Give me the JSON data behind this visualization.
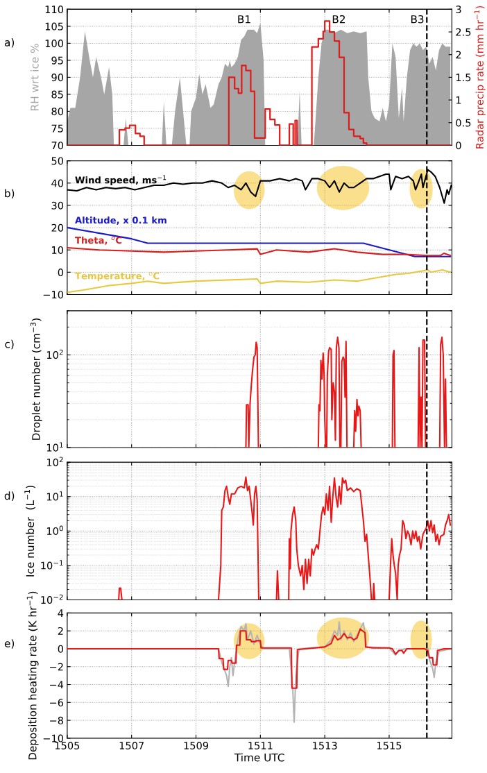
{
  "chart_data": [
    {
      "type": "area",
      "ylabel": "RH wrt ice %",
      "y2label": "Radar precip rate (mm hr$^{−1}$)",
      "xlim": [
        1505,
        1516.95
      ],
      "xticks": [
        1505,
        1507,
        1509,
        1511,
        1513,
        1515
      ],
      "ylim": [
        70,
        110
      ],
      "yticks": [
        70,
        75,
        80,
        85,
        90,
        95,
        100,
        105,
        110
      ],
      "y2lim": [
        0,
        3
      ],
      "y2ticks": [
        0,
        0.5,
        1,
        1.5,
        2,
        2.5,
        3
      ],
      "grid": true,
      "tick_labels": "y",
      "annotations": [
        "a)",
        "B1",
        "B2",
        "B3"
      ],
      "ref_lines": [
        {
          "axis": "x",
          "value": 1516.17,
          "color": "#000000",
          "line_style": "dashed"
        }
      ],
      "series": [
        {
          "type": "area",
          "color": "#a6a6a6",
          "x": [
            1505,
            1505.1,
            1505.25,
            1505.4,
            1505.55,
            1505.7,
            1505.8,
            1505.9,
            1506.05,
            1506.15,
            1506.3,
            1506.4,
            1506.45,
            1506.75,
            1506.82,
            1506.9,
            1507.94,
            1508.0,
            1508.08,
            1508.25,
            1508.35,
            1508.5,
            1508.6,
            1508.7,
            1508.8,
            1508.85,
            1509.0,
            1509.1,
            1509.2,
            1509.3,
            1509.45,
            1509.55,
            1509.7,
            1509.8,
            1509.9,
            1510.0,
            1510.05,
            1510.1,
            1510.2,
            1510.3,
            1510.4,
            1510.5,
            1510.6,
            1510.8,
            1510.9,
            1511.0,
            1511.1,
            1511.15,
            1512.15,
            1512.22,
            1512.28,
            1512.66,
            1512.8,
            1512.9,
            1513.0,
            1513.1,
            1513.3,
            1513.5,
            1513.7,
            1513.9,
            1514.1,
            1514.3,
            1514.35,
            1514.45,
            1514.55,
            1514.7,
            1514.8,
            1514.9,
            1515.0,
            1515.1,
            1515.2,
            1515.3,
            1515.4,
            1515.45,
            1515.55,
            1515.65,
            1515.75,
            1515.85,
            1515.95,
            1516.05,
            1516.15,
            1516.25,
            1516.35,
            1516.45,
            1516.55,
            1516.65,
            1516.75,
            1516.9
          ],
          "values": [
            77,
            81,
            81,
            90,
            103.5,
            95,
            90,
            96,
            90,
            85,
            93,
            85,
            70,
            70,
            78,
            70,
            70,
            83,
            70,
            70,
            80,
            90,
            80,
            70,
            70,
            80,
            84,
            91,
            85,
            88,
            81,
            82,
            88,
            90,
            94,
            93,
            95,
            93,
            94,
            96,
            101,
            102,
            104,
            104,
            103,
            106,
            95,
            70,
            70,
            86,
            70,
            70,
            90,
            100,
            104,
            104,
            103,
            104,
            103,
            103.5,
            103,
            103.5,
            90,
            80,
            78,
            77,
            81,
            77,
            82,
            100,
            96,
            78,
            87,
            77,
            90,
            98,
            100,
            99,
            100,
            98,
            99,
            94,
            96,
            92,
            98,
            100,
            99,
            99
          ]
        },
        {
          "type": "step",
          "axis": "y2",
          "color": "#dd1c1c",
          "x": [
            1505,
            1506.62,
            1506.8,
            1506.94,
            1507.12,
            1507.26,
            1507.39,
            1510.02,
            1510.2,
            1510.32,
            1510.42,
            1510.55,
            1510.7,
            1510.82,
            1511.15,
            1511.3,
            1511.45,
            1511.6,
            1511.9,
            1512.02,
            1512.08,
            1512.14,
            1512.2,
            1512.6,
            1512.8,
            1512.95,
            1513.0,
            1513.15,
            1513.3,
            1513.45,
            1513.6,
            1513.75,
            1513.9,
            1514.1,
            1514.2,
            1514.3,
            1516.9
          ],
          "values": [
            0,
            0.34,
            0.38,
            0.44,
            0.26,
            0.2,
            0,
            1.5,
            1.25,
            1.15,
            1.76,
            1.65,
            1.19,
            0.16,
            0.8,
            0.57,
            0.45,
            0,
            0.47,
            0,
            0.55,
            0,
            0,
            2.17,
            2.35,
            2.51,
            2.74,
            2.5,
            2.3,
            1.94,
            0.72,
            0.35,
            0.2,
            0.15,
            0.05,
            0,
            0
          ]
        }
      ]
    },
    {
      "type": "line",
      "xlim": [
        1505,
        1516.95
      ],
      "xticks": [
        1505,
        1507,
        1509,
        1511,
        1513,
        1515
      ],
      "ylim": [
        -10,
        50
      ],
      "yticks": [
        {
          "value": -10,
          "label": "−10"
        },
        0,
        10,
        20,
        30,
        40,
        50
      ],
      "grid": true,
      "tick_labels": "y",
      "annotations": [
        "b)"
      ],
      "ref_lines": [
        {
          "axis": "x",
          "value": 1516.17,
          "color": "#000000",
          "line_style": "dashed"
        }
      ],
      "series": [
        {
          "name": "Wind speed, ms$^{−1}$",
          "color": "#000000",
          "x": [
            1505,
            1505.3,
            1505.6,
            1505.9,
            1506.2,
            1506.5,
            1506.8,
            1507.1,
            1507.4,
            1507.7,
            1508,
            1508.3,
            1508.6,
            1508.9,
            1509.2,
            1509.5,
            1509.8,
            1510.0,
            1510.2,
            1510.4,
            1510.55,
            1510.7,
            1510.85,
            1511.0,
            1511.3,
            1511.6,
            1511.9,
            1512.1,
            1512.3,
            1512.4,
            1512.6,
            1512.8,
            1513.0,
            1513.15,
            1513.3,
            1513.45,
            1513.6,
            1513.75,
            1513.9,
            1514.1,
            1514.3,
            1514.5,
            1514.7,
            1514.9,
            1515.0,
            1515.05,
            1515.2,
            1515.4,
            1515.6,
            1515.75,
            1515.82,
            1515.9,
            1516.0,
            1516.05,
            1516.2,
            1516.3,
            1516.43,
            1516.57,
            1516.71,
            1516.8,
            1516.85,
            1516.93
          ],
          "values": [
            37,
            36.5,
            38,
            37,
            38,
            37.5,
            38,
            37,
            38,
            39,
            39,
            40,
            39.5,
            40,
            40,
            41,
            40,
            38,
            39,
            37,
            40,
            36,
            34,
            41,
            41,
            42,
            41,
            42,
            41,
            37,
            42,
            42,
            41,
            38,
            41,
            36,
            40,
            38,
            38,
            40,
            42,
            42,
            43,
            44,
            44,
            37,
            43,
            42,
            43,
            41,
            37,
            40,
            44,
            38,
            46,
            45,
            43,
            38,
            31,
            37,
            35,
            39
          ]
        },
        {
          "name": "Altitude, x 0.1 km",
          "color": "#1a1acc",
          "x": [
            1505,
            1507,
            1507.5,
            1514.2,
            1515.8,
            1516.9
          ],
          "values": [
            20,
            15,
            13,
            13,
            7,
            7
          ]
        },
        {
          "name": "Theta, $^{o}$C",
          "color": "#d62020",
          "x": [
            1505,
            1506,
            1507,
            1508,
            1509,
            1510,
            1510.9,
            1511.0,
            1511.5,
            1512.5,
            1513.3,
            1514,
            1514.8,
            1515.5,
            1516.2,
            1516.6,
            1516.7,
            1516.9
          ],
          "values": [
            11,
            10,
            9.5,
            9,
            9.5,
            10,
            10.5,
            8,
            10,
            9,
            10.5,
            9,
            8,
            8,
            7.5,
            7.5,
            8.5,
            7.5
          ]
        },
        {
          "name": "Temperature, $^{o}$C",
          "color": "#e8c840",
          "x": [
            1505,
            1505.5,
            1506.3,
            1507,
            1507.5,
            1508,
            1509,
            1510.9,
            1511.0,
            1511.5,
            1512.5,
            1513.3,
            1514,
            1514.8,
            1515.2,
            1515.6,
            1516.2,
            1516.3,
            1516.65,
            1516.9
          ],
          "values": [
            -9,
            -8,
            -6,
            -5,
            -4,
            -5,
            -4,
            -3,
            -5,
            -4,
            -4.5,
            -3.5,
            -4,
            -2,
            -1,
            -0.5,
            1,
            0,
            1,
            0
          ]
        }
      ]
    },
    {
      "type": "line",
      "log": true,
      "ylabel": "Droplet number (cm$^{−3}$)",
      "xlim": [
        1505,
        1516.95
      ],
      "xticks": [
        1505,
        1507,
        1509,
        1511,
        1513,
        1515
      ],
      "ylim": [
        10,
        300
      ],
      "yticks": [
        {
          "value": 10,
          "label": "10$^{1}$"
        },
        {
          "value": 100,
          "label": "10$^{2}$"
        }
      ],
      "grid": true,
      "tick_labels": "y",
      "annotations": [
        "c)"
      ],
      "ref_lines": [
        {
          "axis": "x",
          "value": 1516.17,
          "color": "#000000",
          "line_style": "dashed"
        }
      ],
      "series": [
        {
          "color": "#e81818",
          "x": [
            1510.55,
            1510.57,
            1510.62,
            1510.64,
            1510.68,
            1510.72,
            1510.76,
            1510.8,
            1510.84,
            1510.87,
            1510.9,
            1510.94,
            1511.0,
            1512.8,
            1512.82,
            1512.85,
            1512.88,
            1512.91,
            1512.95,
            1512.98,
            1513.0,
            1513.03,
            1513.06,
            1513.08,
            1513.12,
            1513.15,
            1513.2,
            1513.22,
            1513.26,
            1513.3,
            1513.33,
            1513.36,
            1513.4,
            1513.44,
            1513.47,
            1513.5,
            1513.53,
            1513.57,
            1513.6,
            1513.63,
            1513.66,
            1513.69,
            1513.8,
            1513.9,
            1513.93,
            1513.96,
            1514.0,
            1514.03,
            1514.06,
            1514.1,
            1514.13,
            1514.6,
            1515.1,
            1515.12,
            1515.15,
            1515.18,
            1515.5,
            1515.9,
            1515.93,
            1515.96,
            1515.99,
            1516.02,
            1516.05,
            1516.1,
            1516.13,
            1516.4,
            1516.57,
            1516.6,
            1516.64,
            1516.68,
            1516.72,
            1516.75,
            1516.78
          ],
          "values": [
            10,
            29,
            29,
            10,
            30,
            48,
            70,
            95,
            100,
            137,
            120,
            10,
            null,
            10,
            29,
            25,
            87,
            55,
            105,
            60,
            20,
            10,
            10,
            60,
            110,
            120,
            115,
            20,
            50,
            40,
            12,
            120,
            155,
            120,
            10,
            10,
            85,
            95,
            90,
            35,
            140,
            10,
            null,
            10,
            25,
            15,
            33,
            22,
            28,
            25,
            10,
            null,
            10,
            100,
            112,
            10,
            null,
            10,
            120,
            10,
            35,
            10,
            145,
            145,
            10,
            null,
            10,
            130,
            155,
            100,
            10,
            55,
            10
          ]
        }
      ]
    },
    {
      "type": "line",
      "log": true,
      "ylabel": "Ice number  (L$^{−1}$)",
      "xlim": [
        1505,
        1516.95
      ],
      "xticks": [
        1505,
        1507,
        1509,
        1511,
        1513,
        1515
      ],
      "ylim": [
        0.01,
        100
      ],
      "yticks": [
        {
          "value": 0.01,
          "label": "10$^{−2}$"
        },
        {
          "value": 0.1,
          "label": "10$^{−1}$"
        },
        {
          "value": 1,
          "label": "10$^{0}$"
        },
        {
          "value": 10,
          "label": "10$^{1}$"
        },
        {
          "value": 100,
          "label": "10$^{2}$"
        }
      ],
      "grid": true,
      "tick_labels": "y",
      "annotations": [
        "d)"
      ],
      "ref_lines": [
        {
          "axis": "x",
          "value": 1516.17,
          "color": "#000000",
          "line_style": "dashed"
        }
      ],
      "series": [
        {
          "color": "#e81818",
          "x": [
            1506.6,
            1506.62,
            1506.66,
            1506.7,
            1506.75,
            1509.7,
            1509.77,
            1509.8,
            1509.85,
            1509.9,
            1509.95,
            1510.0,
            1510.05,
            1510.1,
            1510.2,
            1510.3,
            1510.4,
            1510.5,
            1510.55,
            1510.6,
            1510.65,
            1510.7,
            1510.75,
            1510.78,
            1510.82,
            1510.86,
            1510.9,
            1510.95,
            1511.0,
            1511.5,
            1511.53,
            1511.57,
            1511.7,
            1511.88,
            1511.9,
            1511.93,
            1511.95,
            1512.0,
            1512.05,
            1512.1,
            1512.13,
            1512.18,
            1512.25,
            1512.3,
            1512.35,
            1512.4,
            1512.45,
            1512.5,
            1512.55,
            1512.6,
            1512.65,
            1512.7,
            1512.75,
            1512.8,
            1512.85,
            1512.9,
            1512.95,
            1513.0,
            1513.05,
            1513.1,
            1513.15,
            1513.2,
            1513.25,
            1513.3,
            1513.35,
            1513.4,
            1513.45,
            1513.5,
            1513.55,
            1513.6,
            1513.65,
            1513.7,
            1513.8,
            1513.9,
            1514.0,
            1514.1,
            1514.2,
            1514.25,
            1514.3,
            1514.35,
            1514.4,
            1514.45,
            1514.5,
            1514.52,
            1514.55,
            1514.7,
            1515.0,
            1515.05,
            1515.08,
            1515.12,
            1515.16,
            1515.2,
            1515.25,
            1515.28,
            1515.32,
            1515.37,
            1515.42,
            1515.47,
            1515.52,
            1515.57,
            1515.62,
            1515.68,
            1515.73,
            1515.78,
            1515.83,
            1515.88,
            1515.93,
            1515.98,
            1516.05,
            1516.1,
            1516.15,
            1516.2,
            1516.25,
            1516.3,
            1516.35,
            1516.4,
            1516.45,
            1516.5,
            1516.55,
            1516.6,
            1516.7,
            1516.75,
            1516.8,
            1516.85,
            1516.9
          ],
          "values": [
            0.01,
            0.022,
            0.022,
            0.01,
            null,
            0.01,
            0.1,
            4,
            5,
            15,
            20,
            10,
            6,
            12,
            12,
            18,
            20,
            18,
            37,
            15,
            20,
            8,
            3,
            1.5,
            12,
            20,
            8,
            0.01,
            null,
            0.01,
            0.07,
            0.01,
            null,
            0.01,
            0.6,
            0.08,
            1,
            3,
            5,
            2,
            0.3,
            0.1,
            0.05,
            0.1,
            0.02,
            0.15,
            0.03,
            0.15,
            0.05,
            0.3,
            0.2,
            0.3,
            0.4,
            0.3,
            1,
            3,
            5,
            3,
            12,
            4,
            20,
            1.8,
            10,
            35,
            10,
            5,
            20,
            6,
            35,
            25,
            30,
            15,
            18,
            14,
            17,
            15,
            2,
            0.5,
            0.8,
            0.2,
            0.05,
            0.01,
            0.01,
            0.03,
            0.01,
            null,
            0.01,
            0.15,
            0.6,
            0.2,
            0.1,
            0.06,
            0.01,
            0.1,
            0.2,
            0.3,
            2,
            1.5,
            0.6,
            1,
            0.8,
            0.4,
            1,
            0.6,
            1,
            0.5,
            0.7,
            0.3,
            0.8,
            1,
            1.2,
            2,
            1,
            2,
            0.9,
            1.5,
            0.5,
            0.8,
            0.4,
            0.7,
            0.8,
            1.5,
            2,
            3,
            1.5
          ]
        }
      ]
    },
    {
      "type": "line",
      "ylabel": "Deposition heating rate (K hr$^{−1}$)",
      "xlabel": "Time UTC",
      "xlim": [
        1505,
        1516.95
      ],
      "xticks": [
        1505,
        1507,
        1509,
        1511,
        1513,
        1515
      ],
      "ylim": [
        -10,
        4
      ],
      "yticks": [
        {
          "value": -10,
          "label": "−10"
        },
        {
          "value": -8,
          "label": "−8"
        },
        {
          "value": -6,
          "label": "−6"
        },
        {
          "value": -4,
          "label": "−4"
        },
        {
          "value": -2,
          "label": "−2"
        },
        0,
        2,
        4
      ],
      "grid": true,
      "annotations": [
        "e)"
      ],
      "ref_lines": [
        {
          "axis": "x",
          "value": 1516.17,
          "color": "#000000",
          "line_style": "dashed"
        }
      ],
      "series": [
        {
          "color": "#b4b4b4",
          "x": [
            1505,
            1509.7,
            1509.8,
            1509.9,
            1509.95,
            1510.0,
            1510.05,
            1510.1,
            1510.15,
            1510.2,
            1510.3,
            1510.4,
            1510.5,
            1510.55,
            1510.6,
            1510.7,
            1510.8,
            1510.9,
            1511.0,
            1511.1,
            1511.9,
            1512.0,
            1512.05,
            1512.1,
            1512.2,
            1513.0,
            1513.2,
            1513.3,
            1513.4,
            1513.45,
            1513.5,
            1513.6,
            1513.7,
            1513.8,
            1513.9,
            1514.0,
            1514.1,
            1514.2,
            1514.3,
            1515.0,
            1515.2,
            1515.3,
            1515.5,
            1516.2,
            1516.25,
            1516.35,
            1516.4,
            1516.45,
            1516.55,
            1516.9
          ],
          "values": [
            0,
            0,
            -1.5,
            -2.5,
            -3,
            -4.2,
            -2,
            -1,
            -3,
            -1.5,
            1,
            2.5,
            2,
            2.8,
            1,
            2,
            0.5,
            1.5,
            0.5,
            0,
            0,
            -4,
            -8.2,
            -3,
            0,
            0.2,
            1,
            2,
            1.5,
            3,
            1,
            2,
            1,
            1.8,
            0.8,
            1.5,
            2.2,
            2.9,
            0.2,
            0.1,
            -0.7,
            -0.2,
            0,
            0,
            -1.2,
            -2.2,
            -3.2,
            -1.5,
            -0.3,
            0
          ]
        },
        {
          "color": "#e81818",
          "x": [
            1505,
            1509.7,
            1509.72,
            1509.84,
            1509.86,
            1509.98,
            1510.0,
            1510.1,
            1510.12,
            1510.24,
            1510.26,
            1510.36,
            1510.38,
            1510.55,
            1510.57,
            1510.7,
            1510.72,
            1510.85,
            1510.87,
            1511.0,
            1511.02,
            1511.96,
            1511.98,
            1512.13,
            1512.15,
            1512.4,
            1513.0,
            1513.1,
            1513.2,
            1513.3,
            1513.4,
            1513.5,
            1513.6,
            1513.7,
            1513.8,
            1513.9,
            1514.0,
            1514.1,
            1514.25,
            1514.27,
            1514.5,
            1515.0,
            1515.1,
            1515.2,
            1515.3,
            1515.4,
            1515.45,
            1515.55,
            1516.1,
            1516.2,
            1516.25,
            1516.35,
            1516.37,
            1516.48,
            1516.5,
            1516.6,
            1516.7,
            1516.9
          ],
          "values": [
            0,
            0,
            -1.1,
            -1.1,
            -2.3,
            -2.3,
            -1.3,
            -1.3,
            -1.6,
            -1.6,
            0.4,
            0.4,
            2,
            2,
            1,
            1,
            0.8,
            0.8,
            0.9,
            0.9,
            0.1,
            0.1,
            -4.4,
            -4.4,
            -0.1,
            0,
            0.2,
            0.4,
            0.6,
            1.5,
            1,
            1.2,
            1.7,
            1.2,
            1.3,
            1,
            1.2,
            2.2,
            1.8,
            0.2,
            0.1,
            0.1,
            0,
            -0.6,
            -0.2,
            -0.2,
            -0.5,
            0,
            0,
            -0.2,
            -1,
            -1,
            -1.8,
            -1.8,
            -0.2,
            -0.1,
            0,
            0
          ]
        }
      ]
    }
  ]
}
